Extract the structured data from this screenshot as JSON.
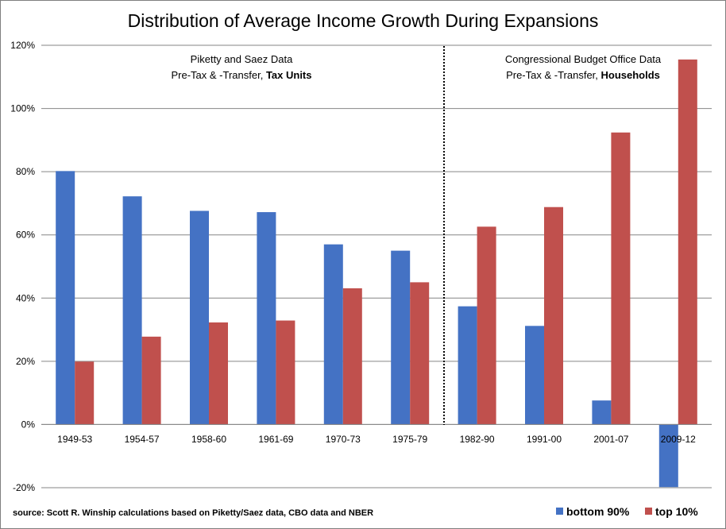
{
  "chart_data": {
    "type": "bar",
    "title": "Distribution of Average Income Growth During Expansions",
    "categories": [
      "1949-53",
      "1954-57",
      "1958-60",
      "1961-69",
      "1970-73",
      "1975-79",
      "1982-90",
      "1991-00",
      "2001-07",
      "2009-12"
    ],
    "series": [
      {
        "name": "bottom 90%",
        "color": "#4472c4",
        "values": [
          80.2,
          72.2,
          67.6,
          67.2,
          57.0,
          55.0,
          37.4,
          31.2,
          7.6,
          -19.8
        ]
      },
      {
        "name": "top 10%",
        "color": "#c0504d",
        "values": [
          19.9,
          27.8,
          32.3,
          32.9,
          43.1,
          45.0,
          62.6,
          68.8,
          92.4,
          115.5
        ]
      }
    ],
    "ylim": [
      -20,
      120
    ],
    "yticks": [
      "-20%",
      "0%",
      "20%",
      "40%",
      "60%",
      "80%",
      "100%",
      "120%"
    ],
    "grid": true,
    "legend_position": "bottom-right",
    "annotations": {
      "left_line1": "Piketty and Saez Data",
      "left_line2_normal": "Pre-Tax & -Transfer, ",
      "left_line2_bold": "Tax Units",
      "right_line1": "Congressional Budget Office Data",
      "right_line2_normal": "Pre-Tax & -Transfer, ",
      "right_line2_bold": "Households"
    },
    "source": "source: Scott R. Winship calculations based on Piketty/Saez data, CBO data and NBER"
  }
}
